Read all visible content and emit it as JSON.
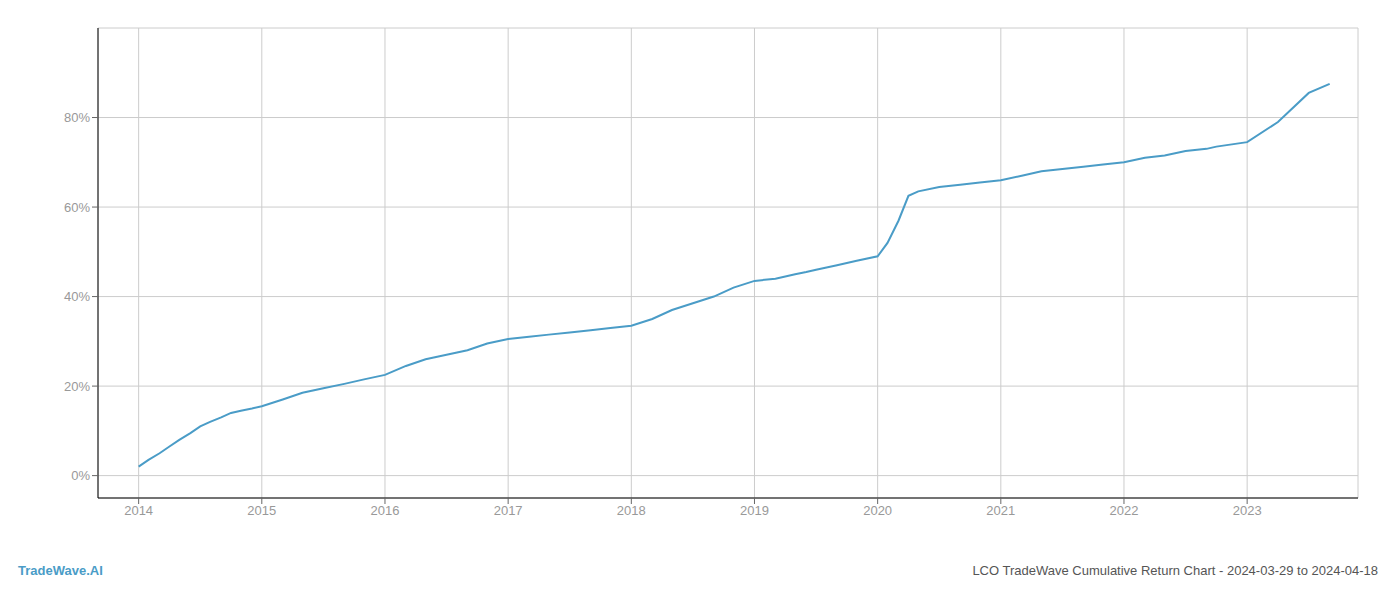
{
  "chart_data": {
    "type": "line",
    "x": [
      2014.0,
      2014.08,
      2014.17,
      2014.25,
      2014.33,
      2014.42,
      2014.5,
      2014.58,
      2014.67,
      2014.75,
      2014.83,
      2014.92,
      2015.0,
      2015.17,
      2015.33,
      2015.5,
      2015.67,
      2015.83,
      2016.0,
      2016.17,
      2016.33,
      2016.5,
      2016.67,
      2016.83,
      2017.0,
      2017.17,
      2017.33,
      2017.5,
      2017.67,
      2017.83,
      2018.0,
      2018.17,
      2018.33,
      2018.5,
      2018.67,
      2018.83,
      2019.0,
      2019.17,
      2019.25,
      2019.33,
      2019.42,
      2019.5,
      2019.67,
      2019.83,
      2020.0,
      2020.08,
      2020.17,
      2020.25,
      2020.33,
      2020.5,
      2020.67,
      2020.83,
      2021.0,
      2021.17,
      2021.33,
      2021.5,
      2021.67,
      2021.83,
      2022.0,
      2022.17,
      2022.33,
      2022.5,
      2022.67,
      2022.75,
      2023.0,
      2023.25,
      2023.5,
      2023.67
    ],
    "values": [
      2.0,
      3.5,
      5.0,
      6.5,
      8.0,
      9.5,
      11.0,
      12.0,
      13.0,
      14.0,
      14.5,
      15.0,
      15.5,
      17.0,
      18.5,
      19.5,
      20.5,
      21.5,
      22.5,
      24.5,
      26.0,
      27.0,
      28.0,
      29.5,
      30.5,
      31.0,
      31.5,
      32.0,
      32.5,
      33.0,
      33.5,
      35.0,
      37.0,
      38.5,
      40.0,
      42.0,
      43.5,
      44.0,
      44.5,
      45.0,
      45.5,
      46.0,
      47.0,
      48.0,
      49.0,
      52.0,
      57.0,
      62.5,
      63.5,
      64.5,
      65.0,
      65.5,
      66.0,
      67.0,
      68.0,
      68.5,
      69.0,
      69.5,
      70.0,
      71.0,
      71.5,
      72.5,
      73.0,
      73.5,
      74.5,
      79.0,
      85.5,
      87.5
    ],
    "color": "#4a9cc7",
    "xlim": [
      2013.67,
      2023.9
    ],
    "xticks": [
      2014,
      2015,
      2016,
      2017,
      2018,
      2019,
      2020,
      2021,
      2022,
      2023
    ],
    "ylim": [
      -5,
      100
    ],
    "yticks": [
      {
        "value": 0,
        "label": "0%"
      },
      {
        "value": 20,
        "label": "20%"
      },
      {
        "value": 40,
        "label": "40%"
      },
      {
        "value": 60,
        "label": "60%"
      },
      {
        "value": 80,
        "label": "80%"
      }
    ],
    "grid": true,
    "annotations": [
      "TradeWave.AI",
      "LCO TradeWave Cumulative Return Chart - 2024-03-29 to 2024-04-18"
    ]
  }
}
